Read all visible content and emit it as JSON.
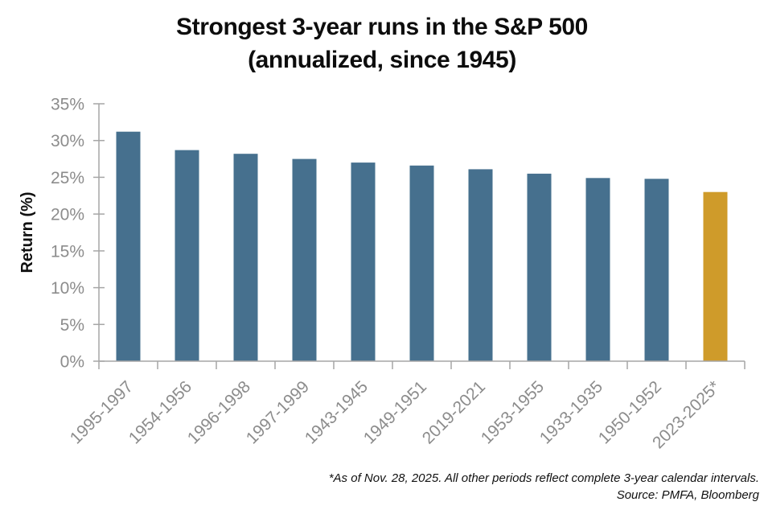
{
  "title": {
    "line1": "Strongest 3-year runs in the S&P 500",
    "line2": "(annualized, since 1945)"
  },
  "footnote": {
    "line1": "*As of Nov. 28, 2025. All other periods reflect complete 3-year calendar intervals.",
    "line2": "Source: PMFA, Bloomberg"
  },
  "chart_data": {
    "type": "bar",
    "title": "Strongest 3-year runs in the S&P 500 (annualized, since 1945)",
    "categories": [
      "1995-1997",
      "1954-1956",
      "1996-1998",
      "1997-1999",
      "1943-1945",
      "1949-1951",
      "2019-2021",
      "1953-1955",
      "1933-1935",
      "1950-1952",
      "2023-2025*"
    ],
    "values": [
      31.2,
      28.7,
      28.2,
      27.5,
      27.0,
      26.6,
      26.1,
      25.5,
      24.9,
      24.8,
      23.0
    ],
    "xlabel": "",
    "ylabel": "Return (%)",
    "ylim": [
      0,
      35
    ],
    "ytick_step": 5,
    "ytick_suffix": "%",
    "grid": false,
    "legend": "none",
    "colors": {
      "bar": "#46708e",
      "highlight_bar": "#cf9b2a",
      "highlight_index": 10,
      "axis": "#a6a6a6",
      "tick_label": "#8c8c8c",
      "text": "#111111"
    }
  }
}
